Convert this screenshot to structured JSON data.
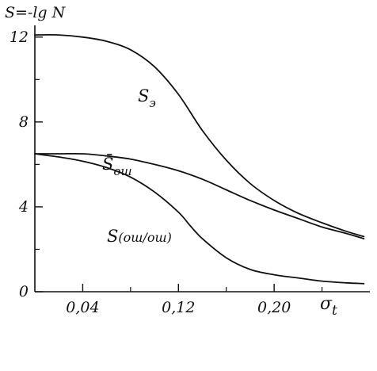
{
  "chart_data": {
    "type": "line",
    "ylabel": "S=-lg N",
    "xlabel": "σ",
    "xlabel_subscript": "t",
    "xlim": [
      0,
      0.28
    ],
    "ylim": [
      0,
      13
    ],
    "x_ticks": [
      0.04,
      0.12,
      0.2
    ],
    "x_tick_labels": [
      "0,04",
      "0,12",
      "0,20"
    ],
    "x_minor_ticks": [
      0.08,
      0.16,
      0.24
    ],
    "y_ticks": [
      0,
      4,
      8,
      12
    ],
    "y_tick_labels": [
      "0",
      "4",
      "8",
      "12"
    ],
    "y_minor_ticks": [
      2,
      6,
      10
    ],
    "grid": false,
    "series": [
      {
        "name": "Sэ",
        "label_main": "S",
        "label_sub": "э",
        "x": [
          0.0,
          0.02,
          0.04,
          0.06,
          0.08,
          0.1,
          0.12,
          0.14,
          0.16,
          0.18,
          0.2,
          0.22,
          0.24,
          0.26,
          0.275
        ],
        "y": [
          12.1,
          12.1,
          12.0,
          11.8,
          11.4,
          10.6,
          9.3,
          7.6,
          6.2,
          5.1,
          4.3,
          3.7,
          3.25,
          2.85,
          2.6
        ]
      },
      {
        "name": "S̄ош",
        "label_main": "S̄",
        "label_sub": "ош",
        "x": [
          0.0,
          0.02,
          0.04,
          0.06,
          0.08,
          0.1,
          0.12,
          0.14,
          0.16,
          0.18,
          0.2,
          0.22,
          0.24,
          0.26,
          0.275
        ],
        "y": [
          6.5,
          6.5,
          6.5,
          6.4,
          6.25,
          6.0,
          5.7,
          5.3,
          4.8,
          4.3,
          3.85,
          3.45,
          3.05,
          2.75,
          2.5
        ]
      },
      {
        "name": "S(ош/ош)",
        "label_main": "S",
        "label_sub": "(ош/ош)",
        "x": [
          0.0,
          0.02,
          0.04,
          0.06,
          0.08,
          0.1,
          0.12,
          0.13,
          0.14,
          0.16,
          0.18,
          0.2,
          0.22,
          0.24,
          0.26,
          0.275
        ],
        "y": [
          6.5,
          6.35,
          6.15,
          5.85,
          5.4,
          4.7,
          3.75,
          3.1,
          2.5,
          1.6,
          1.05,
          0.8,
          0.65,
          0.5,
          0.42,
          0.38
        ]
      }
    ]
  }
}
